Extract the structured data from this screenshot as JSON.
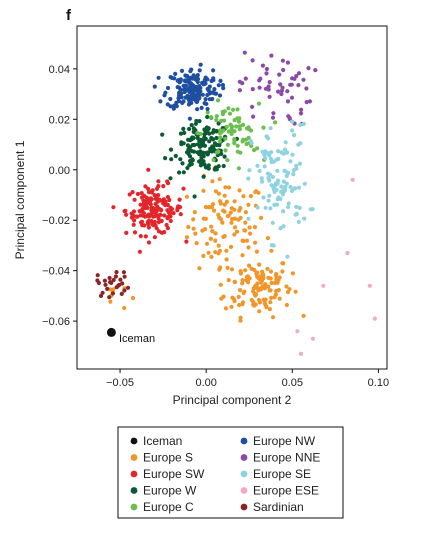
{
  "chart_data": {
    "type": "scatter",
    "panel_label": "f",
    "title": "",
    "xlabel": "Principal component 2",
    "ylabel": "Principal component 1",
    "xlim": [
      -0.075,
      0.105
    ],
    "ylim": [
      -0.079,
      0.057
    ],
    "x_ticks": [
      -0.05,
      0.0,
      0.05,
      0.1
    ],
    "x_tick_labels": [
      "−0.05",
      "0.00",
      "0.05",
      "0.10"
    ],
    "y_ticks": [
      -0.06,
      -0.04,
      -0.02,
      0.0,
      0.02,
      0.04
    ],
    "y_tick_labels": [
      "−0.06",
      "−0.04",
      "−0.02",
      "0.00",
      "0.02",
      "0.04"
    ],
    "grid": false,
    "legend_position": "bottom-center",
    "annotation": {
      "text": "Iceman",
      "x": -0.055,
      "y": -0.0645
    },
    "series": [
      {
        "name": "Iceman",
        "color": "#111111",
        "clusters": [],
        "points": [
          [
            -0.055,
            -0.0645
          ]
        ]
      },
      {
        "name": "Europe S",
        "color": "#f0962a",
        "clusters": [
          {
            "cx": 0.012,
            "cy": -0.022,
            "sx": 0.015,
            "sy": 0.012,
            "n": 100
          },
          {
            "cx": 0.03,
            "cy": -0.046,
            "sx": 0.013,
            "sy": 0.008,
            "n": 120
          },
          {
            "cx": -0.055,
            "cy": -0.05,
            "sx": 0.006,
            "sy": 0.004,
            "n": 8
          }
        ],
        "points": []
      },
      {
        "name": "Europe SW",
        "color": "#e3262b",
        "clusters": [
          {
            "cx": -0.03,
            "cy": -0.016,
            "sx": 0.011,
            "sy": 0.0065,
            "n": 150
          }
        ],
        "points": []
      },
      {
        "name": "Europe W",
        "color": "#0b5a32",
        "clusters": [
          {
            "cx": -0.002,
            "cy": 0.009,
            "sx": 0.011,
            "sy": 0.0065,
            "n": 150
          }
        ],
        "points": []
      },
      {
        "name": "Europe C",
        "color": "#6cbf4e",
        "clusters": [
          {
            "cx": 0.014,
            "cy": 0.014,
            "sx": 0.011,
            "sy": 0.008,
            "n": 70
          }
        ],
        "points": []
      },
      {
        "name": "Europe NW",
        "color": "#1f4fa0",
        "clusters": [
          {
            "cx": -0.008,
            "cy": 0.032,
            "sx": 0.01,
            "sy": 0.0055,
            "n": 170
          }
        ],
        "points": []
      },
      {
        "name": "Europe NNE",
        "color": "#8c4aa8",
        "clusters": [
          {
            "cx": 0.04,
            "cy": 0.032,
            "sx": 0.014,
            "sy": 0.01,
            "n": 55
          }
        ],
        "points": []
      },
      {
        "name": "Europe SE",
        "color": "#8fd3e0",
        "clusters": [
          {
            "cx": 0.043,
            "cy": -0.005,
            "sx": 0.011,
            "sy": 0.015,
            "n": 110
          }
        ],
        "points": []
      },
      {
        "name": "Europe ESE",
        "color": "#f3aac3",
        "clusters": [],
        "points": [
          [
            0.082,
            -0.033
          ],
          [
            0.085,
            -0.004
          ],
          [
            0.095,
            -0.046
          ],
          [
            0.098,
            -0.059
          ],
          [
            0.055,
            -0.073
          ],
          [
            0.053,
            -0.064
          ],
          [
            0.062,
            -0.067
          ],
          [
            0.068,
            -0.046
          ]
        ]
      },
      {
        "name": "Sardinian",
        "color": "#8c2525",
        "clusters": [
          {
            "cx": -0.053,
            "cy": -0.045,
            "sx": 0.007,
            "sy": 0.0035,
            "n": 26
          }
        ],
        "points": []
      }
    ],
    "legend_columns": [
      [
        "Iceman",
        "Europe S",
        "Europe SW",
        "Europe W",
        "Europe C"
      ],
      [
        "Europe NW",
        "Europe NNE",
        "Europe SE",
        "Europe ESE",
        "Sardinian"
      ]
    ]
  }
}
